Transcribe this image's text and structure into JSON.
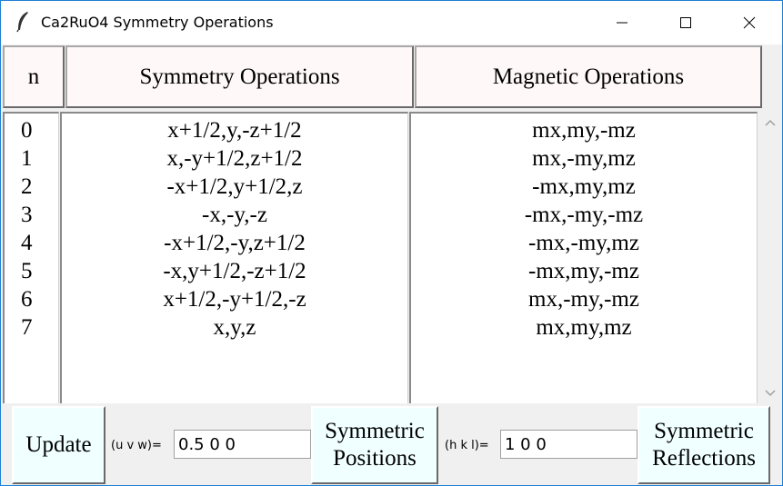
{
  "window": {
    "title": "Ca2RuO4 Symmetry Operations"
  },
  "columns": {
    "n": "n",
    "symmetry": "Symmetry Operations",
    "magnetic": "Magnetic Operations"
  },
  "rows": [
    {
      "n": "0",
      "sym": "x+1/2,y,-z+1/2",
      "mag": "mx,my,-mz"
    },
    {
      "n": "1",
      "sym": "x,-y+1/2,z+1/2",
      "mag": "mx,-my,mz"
    },
    {
      "n": "2",
      "sym": "-x+1/2,y+1/2,z",
      "mag": "-mx,my,mz"
    },
    {
      "n": "3",
      "sym": "-x,-y,-z",
      "mag": "-mx,-my,-mz"
    },
    {
      "n": "4",
      "sym": "-x+1/2,-y,z+1/2",
      "mag": "-mx,-my,mz"
    },
    {
      "n": "5",
      "sym": "-x,y+1/2,-z+1/2",
      "mag": "-mx,my,-mz"
    },
    {
      "n": "6",
      "sym": "x+1/2,-y+1/2,-z",
      "mag": "mx,-my,-mz"
    },
    {
      "n": "7",
      "sym": "x,y,z",
      "mag": "mx,my,mz"
    }
  ],
  "controls": {
    "update_label": "Update",
    "uvw_label": "(u v w)=",
    "uvw_value": "0.5 0 0",
    "sym_positions_label": "Symmetric\nPositions",
    "hkl_label": "(h k l)=",
    "hkl_value": "1 0 0",
    "sym_reflections_label": "Symmetric\nReflections"
  },
  "colors": {
    "header_bg": "#fff8f8",
    "button_bg": "#f0ffff",
    "window_border": "#1f7fd6"
  }
}
